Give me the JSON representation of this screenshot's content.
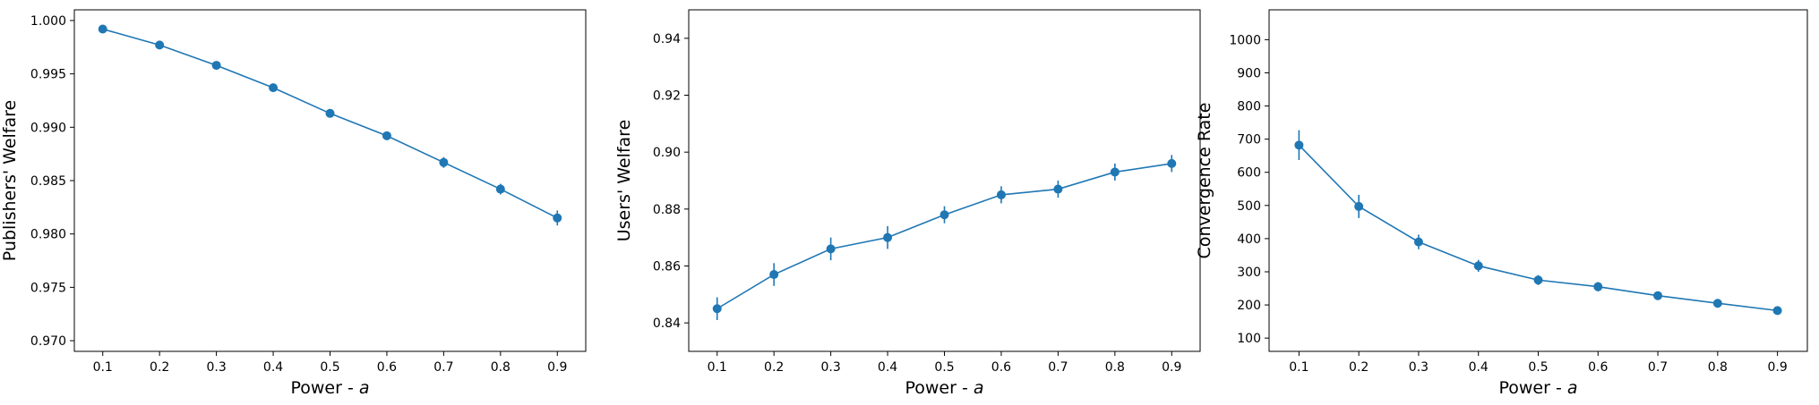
{
  "figure": {
    "marker_color": "#1f77b4",
    "axes_color": "#000000",
    "background": "#ffffff"
  },
  "chart_data": [
    {
      "type": "line",
      "title": "",
      "xlabel_prefix": "Power - ",
      "xlabel_var": "a",
      "ylabel": "Publishers' Welfare",
      "xlim": [
        0.05,
        0.95
      ],
      "ylim": [
        0.969,
        1.001
      ],
      "grid": false,
      "x_ticks": [
        "0.1",
        "0.2",
        "0.3",
        "0.4",
        "0.5",
        "0.6",
        "0.7",
        "0.8",
        "0.9"
      ],
      "y_ticks": [
        "0.970",
        "0.975",
        "0.980",
        "0.985",
        "0.990",
        "0.995",
        "1.000"
      ],
      "x": [
        0.1,
        0.2,
        0.3,
        0.4,
        0.5,
        0.6,
        0.7,
        0.8,
        0.9
      ],
      "series": [
        {
          "values": [
            0.9992,
            0.9977,
            0.9958,
            0.9937,
            0.9913,
            0.9892,
            0.9867,
            0.9842,
            0.9815
          ],
          "errors": [
            0.0003,
            0.0003,
            0.0003,
            0.0003,
            0.0003,
            0.0004,
            0.0005,
            0.0005,
            0.0007
          ],
          "color": "#1f77b4"
        }
      ]
    },
    {
      "type": "line",
      "title": "",
      "xlabel_prefix": "Power - ",
      "xlabel_var": "a",
      "ylabel": "Users' Welfare",
      "xlim": [
        0.05,
        0.95
      ],
      "ylim": [
        0.83,
        0.95
      ],
      "grid": false,
      "x_ticks": [
        "0.1",
        "0.2",
        "0.3",
        "0.4",
        "0.5",
        "0.6",
        "0.7",
        "0.8",
        "0.9"
      ],
      "y_ticks": [
        "0.84",
        "0.86",
        "0.88",
        "0.90",
        "0.92",
        "0.94"
      ],
      "x": [
        0.1,
        0.2,
        0.3,
        0.4,
        0.5,
        0.6,
        0.7,
        0.8,
        0.9
      ],
      "series": [
        {
          "values": [
            0.845,
            0.857,
            0.866,
            0.87,
            0.878,
            0.885,
            0.887,
            0.893,
            0.896
          ],
          "errors": [
            0.004,
            0.004,
            0.004,
            0.004,
            0.003,
            0.003,
            0.003,
            0.003,
            0.003
          ],
          "color": "#1f77b4"
        }
      ]
    },
    {
      "type": "line",
      "title": "",
      "xlabel_prefix": "Power - ",
      "xlabel_var": "a",
      "ylabel": "Convergence Rate",
      "xlim": [
        0.05,
        0.95
      ],
      "ylim": [
        60,
        1090
      ],
      "grid": false,
      "x_ticks": [
        "0.1",
        "0.2",
        "0.3",
        "0.4",
        "0.5",
        "0.6",
        "0.7",
        "0.8",
        "0.9"
      ],
      "y_ticks": [
        "100",
        "200",
        "300",
        "400",
        "500",
        "600",
        "700",
        "800",
        "900",
        "1000"
      ],
      "x": [
        0.1,
        0.2,
        0.3,
        0.4,
        0.5,
        0.6,
        0.7,
        0.8,
        0.9
      ],
      "series": [
        {
          "values": [
            682,
            497,
            390,
            318,
            275,
            255,
            228,
            205,
            183
          ],
          "errors": [
            45,
            35,
            22,
            18,
            15,
            14,
            10,
            8,
            6
          ],
          "color": "#1f77b4"
        }
      ]
    }
  ]
}
